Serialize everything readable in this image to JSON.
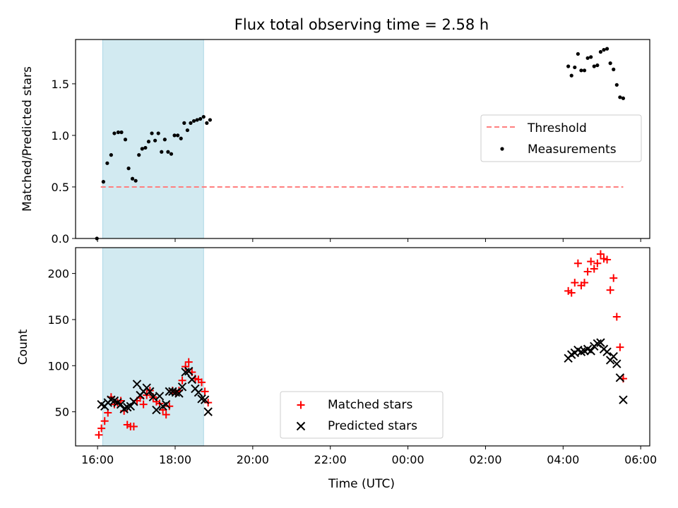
{
  "title": "Flux total observing time = 2.58 h",
  "chart_data": [
    {
      "type": "scatter",
      "panel": "top",
      "ylabel": "Matched/Predicted stars",
      "ylim": [
        0,
        1.93
      ],
      "yticks": [
        0.0,
        0.5,
        1.0,
        1.5
      ],
      "ytick_labels": [
        "0.0",
        "0.5",
        "1.0",
        "1.5"
      ],
      "shaded_interval": {
        "start": "16:08",
        "end": "18:44",
        "color": "#add8e6"
      },
      "series": [
        {
          "name": "Threshold",
          "style": "dashed-line",
          "color": "#ff7f7f",
          "points": [
            {
              "x": "16:05",
              "y": 0.5
            },
            {
              "x": "05:33",
              "y": 0.5
            }
          ]
        },
        {
          "name": "Measurements",
          "style": "dot",
          "color": "#000000",
          "points": [
            {
              "x": "15:59",
              "y": 0.0
            },
            {
              "x": "16:09",
              "y": 0.55
            },
            {
              "x": "16:15",
              "y": 0.73
            },
            {
              "x": "16:21",
              "y": 0.81
            },
            {
              "x": "16:26",
              "y": 1.02
            },
            {
              "x": "16:32",
              "y": 1.03
            },
            {
              "x": "16:37",
              "y": 1.03
            },
            {
              "x": "16:43",
              "y": 0.96
            },
            {
              "x": "16:48",
              "y": 0.68
            },
            {
              "x": "16:54",
              "y": 0.58
            },
            {
              "x": "16:59",
              "y": 0.56
            },
            {
              "x": "17:04",
              "y": 0.81
            },
            {
              "x": "17:09",
              "y": 0.87
            },
            {
              "x": "17:14",
              "y": 0.88
            },
            {
              "x": "17:19",
              "y": 0.94
            },
            {
              "x": "17:24",
              "y": 1.02
            },
            {
              "x": "17:29",
              "y": 0.95
            },
            {
              "x": "17:34",
              "y": 1.02
            },
            {
              "x": "17:39",
              "y": 0.84
            },
            {
              "x": "17:44",
              "y": 0.96
            },
            {
              "x": "17:49",
              "y": 0.84
            },
            {
              "x": "17:54",
              "y": 0.82
            },
            {
              "x": "17:59",
              "y": 1.0
            },
            {
              "x": "18:04",
              "y": 1.0
            },
            {
              "x": "18:09",
              "y": 0.97
            },
            {
              "x": "18:14",
              "y": 1.12
            },
            {
              "x": "18:19",
              "y": 1.05
            },
            {
              "x": "18:24",
              "y": 1.12
            },
            {
              "x": "18:29",
              "y": 1.14
            },
            {
              "x": "18:34",
              "y": 1.15
            },
            {
              "x": "18:39",
              "y": 1.16
            },
            {
              "x": "18:44",
              "y": 1.18
            },
            {
              "x": "18:49",
              "y": 1.12
            },
            {
              "x": "18:54",
              "y": 1.15
            },
            {
              "x": "04:08",
              "y": 1.67
            },
            {
              "x": "04:13",
              "y": 1.58
            },
            {
              "x": "04:18",
              "y": 1.66
            },
            {
              "x": "04:23",
              "y": 1.79
            },
            {
              "x": "04:28",
              "y": 1.63
            },
            {
              "x": "04:33",
              "y": 1.63
            },
            {
              "x": "04:38",
              "y": 1.75
            },
            {
              "x": "04:43",
              "y": 1.76
            },
            {
              "x": "04:48",
              "y": 1.67
            },
            {
              "x": "04:53",
              "y": 1.68
            },
            {
              "x": "04:58",
              "y": 1.81
            },
            {
              "x": "05:03",
              "y": 1.83
            },
            {
              "x": "05:08",
              "y": 1.84
            },
            {
              "x": "05:13",
              "y": 1.7
            },
            {
              "x": "05:18",
              "y": 1.64
            },
            {
              "x": "05:23",
              "y": 1.49
            },
            {
              "x": "05:28",
              "y": 1.37
            },
            {
              "x": "05:33",
              "y": 1.36
            }
          ]
        }
      ],
      "legend": {
        "placement": "right",
        "entries": [
          "Threshold",
          "Measurements"
        ]
      }
    },
    {
      "type": "scatter",
      "panel": "bottom",
      "xlabel": "Time (UTC)",
      "ylabel": "Count",
      "ylim": [
        13,
        228
      ],
      "yticks": [
        50,
        100,
        150,
        200
      ],
      "ytick_labels": [
        "50",
        "100",
        "150",
        "200"
      ],
      "xlim": [
        "15:26",
        "06:14"
      ],
      "xticks": [
        "16:00",
        "18:00",
        "20:00",
        "22:00",
        "00:00",
        "02:00",
        "04:00",
        "06:00"
      ],
      "shaded_interval": {
        "start": "16:08",
        "end": "18:44",
        "color": "#add8e6"
      },
      "series": [
        {
          "name": "Matched stars",
          "marker": "plus",
          "color": "#ff0000",
          "points": [
            {
              "x": "16:02",
              "y": 25
            },
            {
              "x": "16:06",
              "y": 32
            },
            {
              "x": "16:11",
              "y": 40
            },
            {
              "x": "16:16",
              "y": 49
            },
            {
              "x": "16:21",
              "y": 66
            },
            {
              "x": "16:26",
              "y": 58
            },
            {
              "x": "16:31",
              "y": 60
            },
            {
              "x": "16:36",
              "y": 62
            },
            {
              "x": "16:41",
              "y": 51
            },
            {
              "x": "16:46",
              "y": 36
            },
            {
              "x": "16:51",
              "y": 34
            },
            {
              "x": "16:56",
              "y": 34
            },
            {
              "x": "17:01",
              "y": 62
            },
            {
              "x": "17:06",
              "y": 65
            },
            {
              "x": "17:11",
              "y": 58
            },
            {
              "x": "17:16",
              "y": 68
            },
            {
              "x": "17:21",
              "y": 73
            },
            {
              "x": "17:26",
              "y": 66
            },
            {
              "x": "17:31",
              "y": 61
            },
            {
              "x": "17:36",
              "y": 59
            },
            {
              "x": "17:41",
              "y": 52
            },
            {
              "x": "17:46",
              "y": 47
            },
            {
              "x": "17:51",
              "y": 56
            },
            {
              "x": "17:56",
              "y": 73
            },
            {
              "x": "18:01",
              "y": 71
            },
            {
              "x": "18:06",
              "y": 73
            },
            {
              "x": "18:11",
              "y": 84
            },
            {
              "x": "18:16",
              "y": 99
            },
            {
              "x": "18:21",
              "y": 104
            },
            {
              "x": "18:26",
              "y": 93
            },
            {
              "x": "18:31",
              "y": 86
            },
            {
              "x": "18:36",
              "y": 85
            },
            {
              "x": "18:41",
              "y": 82
            },
            {
              "x": "18:46",
              "y": 72
            },
            {
              "x": "18:51",
              "y": 60
            },
            {
              "x": "04:08",
              "y": 181
            },
            {
              "x": "04:13",
              "y": 179
            },
            {
              "x": "04:18",
              "y": 190
            },
            {
              "x": "04:23",
              "y": 211
            },
            {
              "x": "04:28",
              "y": 187
            },
            {
              "x": "04:33",
              "y": 190
            },
            {
              "x": "04:38",
              "y": 202
            },
            {
              "x": "04:43",
              "y": 213
            },
            {
              "x": "04:48",
              "y": 205
            },
            {
              "x": "04:53",
              "y": 211
            },
            {
              "x": "04:58",
              "y": 221
            },
            {
              "x": "05:03",
              "y": 216
            },
            {
              "x": "05:08",
              "y": 215
            },
            {
              "x": "05:13",
              "y": 182
            },
            {
              "x": "05:18",
              "y": 195
            },
            {
              "x": "05:23",
              "y": 153
            },
            {
              "x": "05:28",
              "y": 120
            },
            {
              "x": "05:33",
              "y": 86
            }
          ]
        },
        {
          "name": "Predicted stars",
          "marker": "x",
          "color": "#000000",
          "points": [
            {
              "x": "16:06",
              "y": 58
            },
            {
              "x": "16:11",
              "y": 56
            },
            {
              "x": "16:16",
              "y": 60
            },
            {
              "x": "16:21",
              "y": 63
            },
            {
              "x": "16:26",
              "y": 62
            },
            {
              "x": "16:31",
              "y": 60
            },
            {
              "x": "16:36",
              "y": 58
            },
            {
              "x": "16:41",
              "y": 53
            },
            {
              "x": "16:46",
              "y": 55
            },
            {
              "x": "16:51",
              "y": 56
            },
            {
              "x": "16:56",
              "y": 61
            },
            {
              "x": "17:01",
              "y": 80
            },
            {
              "x": "17:06",
              "y": 68
            },
            {
              "x": "17:11",
              "y": 72
            },
            {
              "x": "17:16",
              "y": 76
            },
            {
              "x": "17:21",
              "y": 72
            },
            {
              "x": "17:26",
              "y": 66
            },
            {
              "x": "17:31",
              "y": 52
            },
            {
              "x": "17:36",
              "y": 67
            },
            {
              "x": "17:41",
              "y": 56
            },
            {
              "x": "17:46",
              "y": 58
            },
            {
              "x": "17:51",
              "y": 72
            },
            {
              "x": "17:56",
              "y": 72
            },
            {
              "x": "18:01",
              "y": 71
            },
            {
              "x": "18:06",
              "y": 70
            },
            {
              "x": "18:11",
              "y": 77
            },
            {
              "x": "18:16",
              "y": 93
            },
            {
              "x": "18:21",
              "y": 94
            },
            {
              "x": "18:26",
              "y": 85
            },
            {
              "x": "18:31",
              "y": 75
            },
            {
              "x": "18:36",
              "y": 71
            },
            {
              "x": "18:41",
              "y": 64
            },
            {
              "x": "18:46",
              "y": 63
            },
            {
              "x": "18:51",
              "y": 50
            },
            {
              "x": "04:08",
              "y": 108
            },
            {
              "x": "04:13",
              "y": 112
            },
            {
              "x": "04:18",
              "y": 114
            },
            {
              "x": "04:23",
              "y": 117
            },
            {
              "x": "04:28",
              "y": 115
            },
            {
              "x": "04:33",
              "y": 116
            },
            {
              "x": "04:38",
              "y": 118
            },
            {
              "x": "04:43",
              "y": 116
            },
            {
              "x": "04:48",
              "y": 121
            },
            {
              "x": "04:53",
              "y": 124
            },
            {
              "x": "04:58",
              "y": 125
            },
            {
              "x": "05:03",
              "y": 118
            },
            {
              "x": "05:08",
              "y": 115
            },
            {
              "x": "05:13",
              "y": 106
            },
            {
              "x": "05:18",
              "y": 110
            },
            {
              "x": "05:23",
              "y": 102
            },
            {
              "x": "05:28",
              "y": 87
            },
            {
              "x": "05:33",
              "y": 63
            }
          ]
        }
      ],
      "legend": {
        "placement": "bottom-center",
        "entries": [
          "Matched stars",
          "Predicted stars"
        ]
      }
    }
  ]
}
